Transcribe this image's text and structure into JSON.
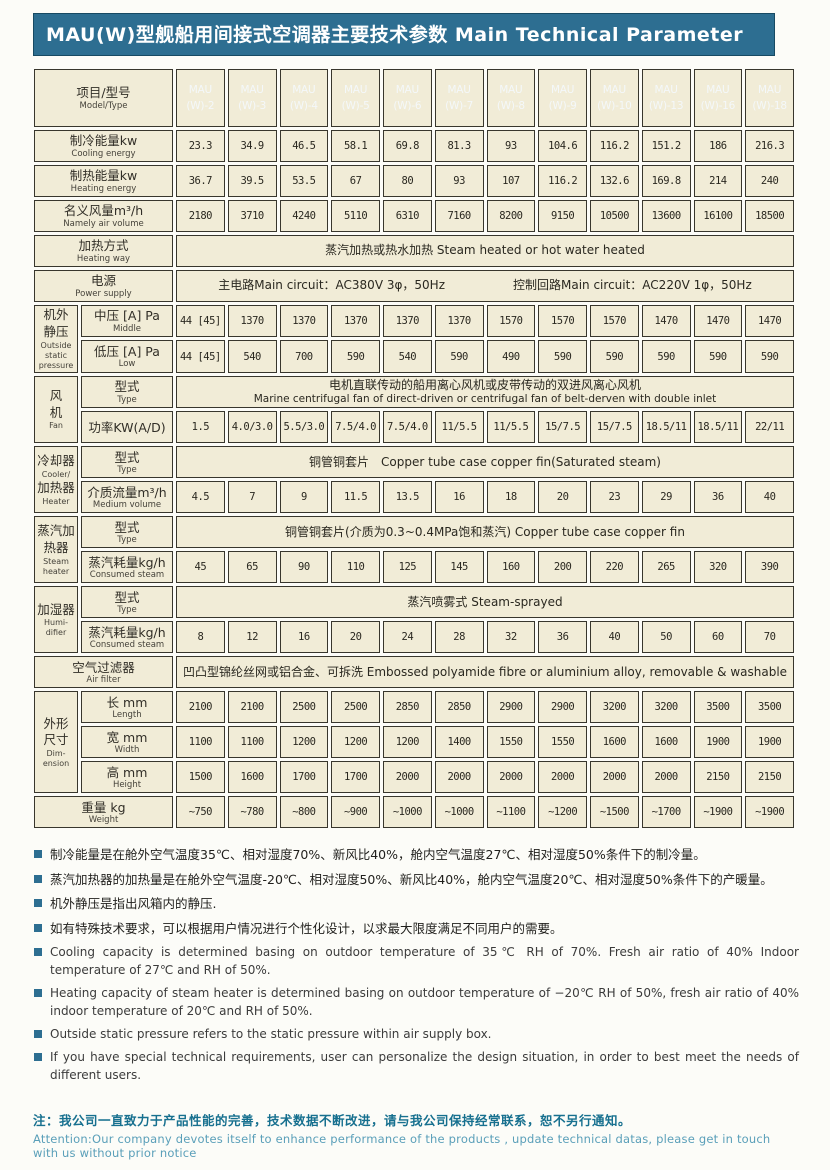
{
  "title": "MAU(W)型舰船用间接式空调器主要技术参数 Main Technical Parameter",
  "accent_color": "#2d6e91",
  "cell_color": "#f1ecd7",
  "table": {
    "corner": {
      "zh": "项目/型号",
      "en": "Model/Type"
    },
    "models": [
      {
        "l1": "MAU",
        "l2": "(W)-2"
      },
      {
        "l1": "MAU",
        "l2": "(W)-3"
      },
      {
        "l1": "MAU",
        "l2": "(W)-4"
      },
      {
        "l1": "MAU",
        "l2": "(W)-5"
      },
      {
        "l1": "MAU",
        "l2": "(W)-6"
      },
      {
        "l1": "MAU",
        "l2": "(W)-7"
      },
      {
        "l1": "MAU",
        "l2": "(W)-8"
      },
      {
        "l1": "MAU",
        "l2": "(W)-9"
      },
      {
        "l1": "MAU",
        "l2": "(W)-10"
      },
      {
        "l1": "MAU",
        "l2": "(W)-13"
      },
      {
        "l1": "MAU",
        "l2": "(W)-16"
      },
      {
        "l1": "MAU",
        "l2": "(W)-18"
      }
    ],
    "rows": [
      {
        "label_zh": "制冷能量kw",
        "label_en": "Cooling energy",
        "values": [
          "23.3",
          "34.9",
          "46.5",
          "58.1",
          "69.8",
          "81.3",
          "93",
          "104.6",
          "116.2",
          "151.2",
          "186",
          "216.3"
        ]
      },
      {
        "label_zh": "制热能量kw",
        "label_en": "Heating energy",
        "values": [
          "36.7",
          "39.5",
          "53.5",
          "67",
          "80",
          "93",
          "107",
          "116.2",
          "132.6",
          "169.8",
          "214",
          "240"
        ]
      },
      {
        "label_zh": "名义风量m³/h",
        "label_en": "Namely air volume",
        "values": [
          "2180",
          "3710",
          "4240",
          "5110",
          "6310",
          "7160",
          "8200",
          "9150",
          "10500",
          "13600",
          "16100",
          "18500"
        ]
      },
      {
        "label_zh": "加热方式",
        "label_en": "Heating way",
        "text": "蒸汽加热或热水加热 Steam heated or hot water heated"
      },
      {
        "label_zh": "电源",
        "label_en": "Power supply",
        "texts": [
          "主电路Main circuit：AC380V 3φ，50Hz",
          "控制回路Main circuit：AC220V 1φ，50Hz"
        ]
      },
      {
        "group": {
          "span": 2,
          "lines": [
            [
              "机外",
              "zh"
            ],
            [
              "静压",
              "zh"
            ],
            [
              "Outside",
              "en"
            ],
            [
              "static",
              "en"
            ],
            [
              "pressure",
              "en"
            ]
          ]
        },
        "label_zh": "中压 [A] Pa",
        "label_en": "Middle",
        "values": [
          "44 [45]",
          "1370",
          "1370",
          "1370",
          "1370",
          "1370",
          "1570",
          "1570",
          "1570",
          "1470",
          "1470",
          "1470"
        ]
      },
      {
        "sub": true,
        "label_zh": "低压 [A] Pa",
        "label_en": "Low",
        "values": [
          "44 [45]",
          "540",
          "700",
          "590",
          "540",
          "590",
          "490",
          "590",
          "590",
          "590",
          "590",
          "590"
        ]
      },
      {
        "group": {
          "span": 2,
          "lines": [
            [
              "风",
              "zh"
            ],
            [
              "机",
              "zh"
            ],
            [
              "Fan",
              "en"
            ]
          ]
        },
        "label_zh": "型式",
        "label_en": "Type",
        "text": "电机直联传动的船用离心风机或皮带传动的双进风离心风机",
        "text2": "Marine centrifugal fan of direct-driven or centrifugal fan of belt-derven with double inlet"
      },
      {
        "sub": true,
        "label_zh": "功率KW(A/D)",
        "values": [
          "1.5",
          "4.0/3.0",
          "5.5/3.0",
          "7.5/4.0",
          "7.5/4.0",
          "11/5.5",
          "11/5.5",
          "15/7.5",
          "15/7.5",
          "18.5/11",
          "18.5/11",
          "22/11"
        ]
      },
      {
        "group": {
          "span": 2,
          "lines": [
            [
              "冷却器",
              "zh"
            ],
            [
              "Cooler/",
              "en"
            ],
            [
              "加热器",
              "zh"
            ],
            [
              "Heater",
              "en"
            ]
          ]
        },
        "label_zh": "型式",
        "label_en": "Type",
        "text": "铜管铜套片　Copper tube case copper fin(Saturated steam)"
      },
      {
        "sub": true,
        "label_zh": "介质流量m³/h",
        "label_en": "Medium volume",
        "values": [
          "4.5",
          "7",
          "9",
          "11.5",
          "13.5",
          "16",
          "18",
          "20",
          "23",
          "29",
          "36",
          "40"
        ]
      },
      {
        "group": {
          "span": 2,
          "lines": [
            [
              "蒸汽加",
              "zh"
            ],
            [
              "热器",
              "zh"
            ],
            [
              "Steam",
              "en"
            ],
            [
              "heater",
              "en"
            ]
          ]
        },
        "label_zh": "型式",
        "label_en": "Type",
        "text": "铜管铜套片(介质为0.3~0.4MPa饱和蒸汽) Copper tube case copper fin"
      },
      {
        "sub": true,
        "label_zh": "蒸汽耗量kg/h",
        "label_en": "Consumed steam",
        "values": [
          "45",
          "65",
          "90",
          "110",
          "125",
          "145",
          "160",
          "200",
          "220",
          "265",
          "320",
          "390"
        ]
      },
      {
        "group": {
          "span": 2,
          "lines": [
            [
              "加湿器",
              "zh"
            ],
            [
              "Humi-",
              "en"
            ],
            [
              "difier",
              "en"
            ]
          ]
        },
        "label_zh": "型式",
        "label_en": "Type",
        "text": "蒸汽喷雾式 Steam-sprayed"
      },
      {
        "sub": true,
        "label_zh": "蒸汽耗量kg/h",
        "label_en": "Consumed steam",
        "values": [
          "8",
          "12",
          "16",
          "20",
          "24",
          "28",
          "32",
          "36",
          "40",
          "50",
          "60",
          "70"
        ]
      },
      {
        "label_zh": "空气过滤器",
        "label_en": "Air filter",
        "text": "凹凸型锦纶丝网或铝合金、可拆洗 Embossed polyamide fibre or aluminium alloy, removable & washable"
      },
      {
        "group": {
          "span": 3,
          "lines": [
            [
              "外形",
              "zh"
            ],
            [
              "尺寸",
              "zh"
            ],
            [
              "Dim-",
              "en"
            ],
            [
              "ension",
              "en"
            ]
          ]
        },
        "label_zh": "长 mm",
        "label_en": "Length",
        "values": [
          "2100",
          "2100",
          "2500",
          "2500",
          "2850",
          "2850",
          "2900",
          "2900",
          "3200",
          "3200",
          "3500",
          "3500"
        ]
      },
      {
        "sub": true,
        "label_zh": "宽 mm",
        "label_en": "Width",
        "values": [
          "1100",
          "1100",
          "1200",
          "1200",
          "1200",
          "1400",
          "1550",
          "1550",
          "1600",
          "1600",
          "1900",
          "1900"
        ]
      },
      {
        "sub": true,
        "label_zh": "高 mm",
        "label_en": "Height",
        "values": [
          "1500",
          "1600",
          "1700",
          "1700",
          "2000",
          "2000",
          "2000",
          "2000",
          "2000",
          "2000",
          "2150",
          "2150"
        ]
      },
      {
        "label_zh": "重量 kg",
        "label_en": "Weight",
        "values": [
          "~750",
          "~780",
          "~800",
          "~900",
          "~1000",
          "~1000",
          "~1100",
          "~1200",
          "~1500",
          "~1700",
          "~1900",
          "~1900"
        ]
      }
    ]
  },
  "footnotes": [
    {
      "lang": "zh",
      "text": "制冷能量是在舱外空气温度35℃、相对湿度70%、新风比40%，舱内空气温度27℃、相对湿度50%条件下的制冷量。"
    },
    {
      "lang": "zh",
      "text": "蒸汽加热器的加热量是在舱外空气温度-20℃、相对湿度50%、新风比40%，舱内空气温度20℃、相对湿度50%条件下的产暖量。"
    },
    {
      "lang": "zh",
      "text": "机外静压是指出风箱内的静压."
    },
    {
      "lang": "zh",
      "text": "如有特殊技术要求，可以根据用户情况进行个性化设计，以求最大限度满足不同用户的需要。"
    },
    {
      "lang": "en",
      "text": "Cooling capacity is determined basing on outdoor temperature of 35℃ RH of 70%. Fresh air ratio of 40% Indoor temperature of 27℃ and RH of 50%."
    },
    {
      "lang": "en",
      "text": "Heating capacity of steam heater is determined basing on outdoor temperature of −20℃ RH of 50%, fresh air ratio of 40% indoor temperature of 20℃ and RH of 50%."
    },
    {
      "lang": "en",
      "text": "Outside static pressure refers to the static pressure within air supply box."
    },
    {
      "lang": "en",
      "text": "If you have special technical requirements, user can personalize the design situation, in order to best meet the needs of different users."
    }
  ],
  "note": {
    "zh": "注：我公司一直致力于产品性能的完善，技术数据不断改进，请与我公司保持经常联系，恕不另行通知。",
    "en": "Attention:Our company devotes itself to enhance performance of the products , update technical datas, please get in touch with us without prior notice"
  }
}
